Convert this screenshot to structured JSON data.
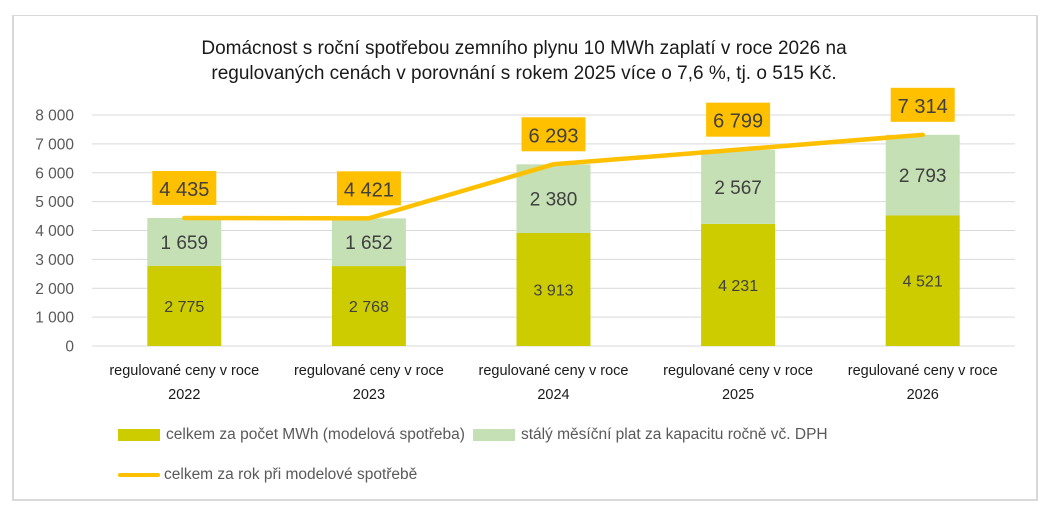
{
  "chart_data": {
    "type": "bar",
    "stacked": true,
    "title": "Domácnost s roční spotřebou zemního plynu 10 MWh zaplatí v roce 2026 na\nregulovaných cenách v porovnání s rokem 2025 více o 7,6 %, tj. o 515 Kč.",
    "categories": [
      [
        "regulované ceny v roce",
        "2022"
      ],
      [
        "regulované ceny v roce",
        "2023"
      ],
      [
        "regulované ceny v roce",
        "2024"
      ],
      [
        "regulované ceny v roce",
        "2025"
      ],
      [
        "regulované ceny v roce",
        "2026"
      ]
    ],
    "series": [
      {
        "name": "celkem za počet MWh (modelová spotřeba)",
        "kind": "bar",
        "color": "#cccc00",
        "values": [
          2775,
          2768,
          3913,
          4231,
          4521
        ],
        "labels": [
          "2 775",
          "2 768",
          "3 913",
          "4 231",
          "4 521"
        ]
      },
      {
        "name": "stálý měsíční plat za kapacitu ročně vč. DPH",
        "kind": "bar",
        "color": "#c5e0b4",
        "values": [
          1659,
          1652,
          2380,
          2567,
          2793
        ],
        "labels": [
          "1 659",
          "1 652",
          "2 380",
          "2 567",
          "2 793"
        ]
      },
      {
        "name": "celkem za rok při modelové spotřebě",
        "kind": "line",
        "color": "#ffc000",
        "values": [
          4435,
          4421,
          6293,
          6799,
          7314
        ],
        "labels": [
          "4 435",
          "4 421",
          "6 293",
          "6 799",
          "7 314"
        ]
      }
    ],
    "yaxis": {
      "min": 0,
      "max": 8000,
      "step": 1000,
      "tick_labels": [
        "0",
        "1 000",
        "2 000",
        "3 000",
        "4 000",
        "5 000",
        "6 000",
        "7 000",
        "8 000"
      ]
    },
    "xlabel": "",
    "ylabel": "",
    "grid": true,
    "legend_position": "bottom"
  }
}
